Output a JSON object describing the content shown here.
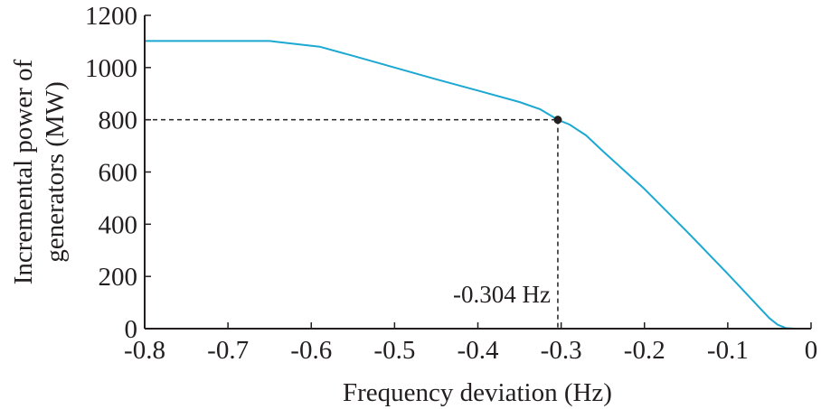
{
  "chart_data": {
    "type": "line",
    "title": "",
    "xlabel": "Frequency deviation (Hz)",
    "ylabel_lines": [
      "Incremental power of",
      "generators (MW)"
    ],
    "xlim": [
      -0.8,
      0
    ],
    "ylim": [
      0,
      1200
    ],
    "xticks": [
      -0.8,
      -0.7,
      -0.6,
      -0.5,
      -0.4,
      -0.3,
      -0.2,
      -0.1,
      0
    ],
    "xtick_labels": [
      "-0.8",
      "-0.7",
      "-0.6",
      "-0.5",
      "-0.4",
      "-0.3",
      "-0.2",
      "-0.1",
      "0"
    ],
    "yticks": [
      0,
      200,
      400,
      600,
      800,
      1000,
      1200
    ],
    "ytick_labels": [
      "0",
      "200",
      "400",
      "600",
      "800",
      "1000",
      "1200"
    ],
    "grid": false,
    "series": [
      {
        "color": "#1ba8d2",
        "x": [
          -0.8,
          -0.65,
          -0.64,
          -0.59,
          -0.55,
          -0.5,
          -0.45,
          -0.4,
          -0.35,
          -0.325,
          -0.304,
          -0.29,
          -0.27,
          -0.25,
          -0.2,
          -0.15,
          -0.1,
          -0.05,
          -0.04,
          -0.03,
          -0.02,
          -0.01,
          0
        ],
        "y": [
          1102,
          1102,
          1098,
          1080,
          1045,
          1000,
          955,
          912,
          868,
          840,
          800,
          782,
          740,
          680,
          535,
          375,
          210,
          40,
          15,
          2,
          0,
          0,
          0
        ]
      }
    ],
    "annotations": [
      {
        "x": -0.304,
        "y": 800,
        "label": "-0.304 Hz",
        "marker_color": "#231f20"
      }
    ]
  }
}
